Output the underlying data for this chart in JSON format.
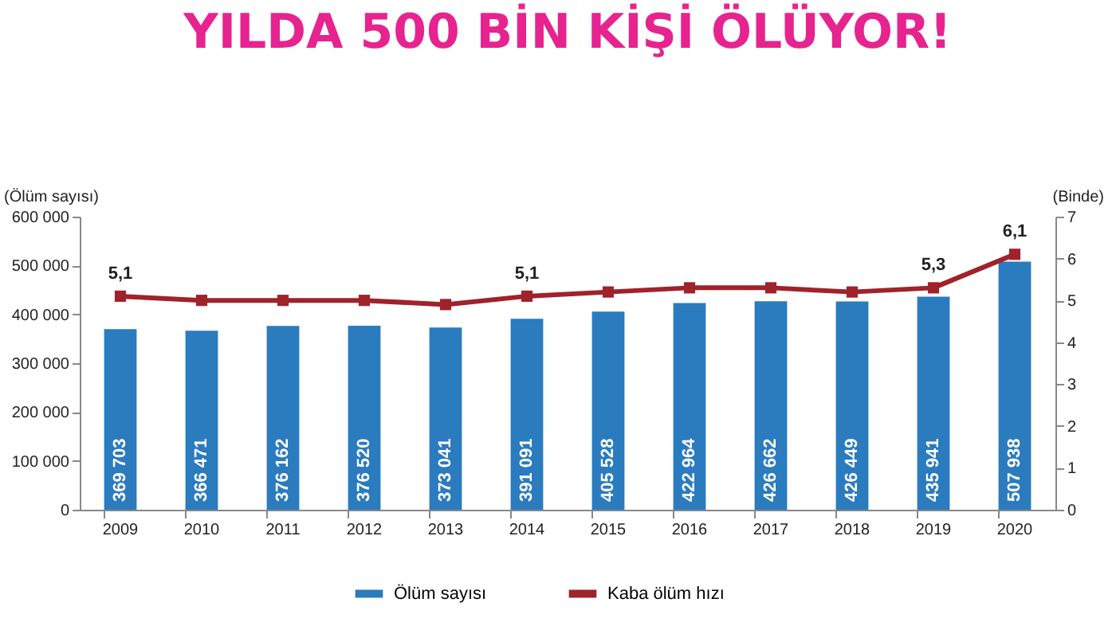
{
  "chart_data": {
    "type": "bar",
    "title": "YILDA 500 BİN KİŞİ ÖLÜYOR!",
    "ylabel": "(Ölüm sayısı)",
    "y2label": "(Binde)",
    "categories": [
      "2009",
      "2010",
      "2011",
      "2012",
      "2013",
      "2014",
      "2015",
      "2016",
      "2017",
      "2018",
      "2019",
      "2020"
    ],
    "series": [
      {
        "name": "Ölüm sayısı",
        "color": "#2b7bbf",
        "values": [
          369703,
          366471,
          376162,
          376520,
          373041,
          391091,
          405528,
          422964,
          426662,
          426449,
          435941,
          507938
        ],
        "value_labels": [
          "369 703",
          "366 471",
          "376 162",
          "376 520",
          "373 041",
          "391 091",
          "405 528",
          "422 964",
          "426 662",
          "426 449",
          "435 941",
          "507 938"
        ]
      },
      {
        "name": "Kaba ölüm hızı",
        "type": "line",
        "axis": "y2",
        "color": "#a0222a",
        "marker": "square",
        "values": [
          5.1,
          5.0,
          5.0,
          5.0,
          4.9,
          5.1,
          5.2,
          5.3,
          5.3,
          5.2,
          5.3,
          6.1
        ],
        "value_labels": [
          "5,1",
          null,
          null,
          null,
          null,
          "5,1",
          null,
          null,
          null,
          null,
          "5,3",
          "6,1"
        ]
      }
    ],
    "ylim": [
      0,
      600000
    ],
    "yticks": [
      0,
      {
        "value": 100000,
        "label": "100 000"
      },
      {
        "value": 200000,
        "label": "200 000"
      },
      {
        "value": 300000,
        "label": "300 000"
      },
      {
        "value": 400000,
        "label": "400 000"
      },
      {
        "value": 500000,
        "label": "500 000"
      },
      {
        "value": 600000,
        "label": "600 000"
      }
    ],
    "y2lim": [
      0,
      7
    ],
    "y2ticks": [
      0,
      1,
      2,
      3,
      4,
      5,
      6,
      7
    ],
    "grid": false,
    "legend": "bottom"
  }
}
